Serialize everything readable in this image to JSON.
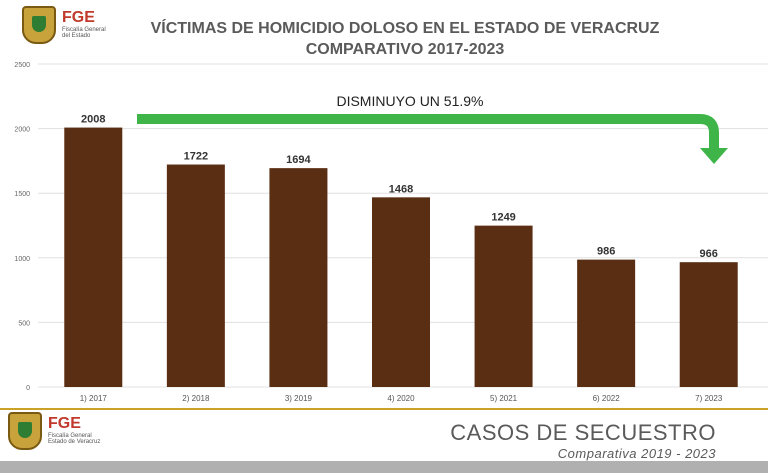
{
  "header": {
    "logo_name": "FGE",
    "logo_sub1": "Fiscalía General",
    "logo_sub2": "del Estado",
    "title_line1": "VÍCTIMAS DE HOMICIDIO DOLOSO EN EL ESTADO DE VERACRUZ",
    "title_line2": "COMPARATIVO 2017-2023"
  },
  "annotation": {
    "text": "DISMINUYO UN 51.9%",
    "arrow_color": "#3fb549"
  },
  "colors": {
    "bar": "#5a2e12",
    "grid": "#e0e0e0",
    "text": "#5a5a5a"
  },
  "chart_data": {
    "type": "bar",
    "categories": [
      "1) 2017",
      "2) 2018",
      "3) 2019",
      "4) 2020",
      "5) 2021",
      "6) 2022",
      "7) 2023"
    ],
    "values": [
      2008,
      1722,
      1694,
      1468,
      1249,
      986,
      966
    ],
    "title": "VÍCTIMAS DE HOMICIDIO DOLOSO EN EL ESTADO DE VERACRUZ",
    "subtitle": "COMPARATIVO 2017-2023",
    "xlabel": "",
    "ylabel": "",
    "ylim": [
      0,
      2500
    ],
    "yticks": [
      0,
      500,
      1000,
      1500,
      2000,
      2500
    ],
    "grid": true,
    "data_labels": [
      "2008",
      "1722",
      "1694",
      "1468",
      "1249",
      "986",
      "966"
    ]
  },
  "footer": {
    "logo_name": "FGE",
    "logo_sub1": "Fiscalía General",
    "logo_sub2": "Estado de Veracruz",
    "title": "CASOS DE SECUESTRO",
    "subtitle": "Comparativa 2019 - 2023"
  }
}
